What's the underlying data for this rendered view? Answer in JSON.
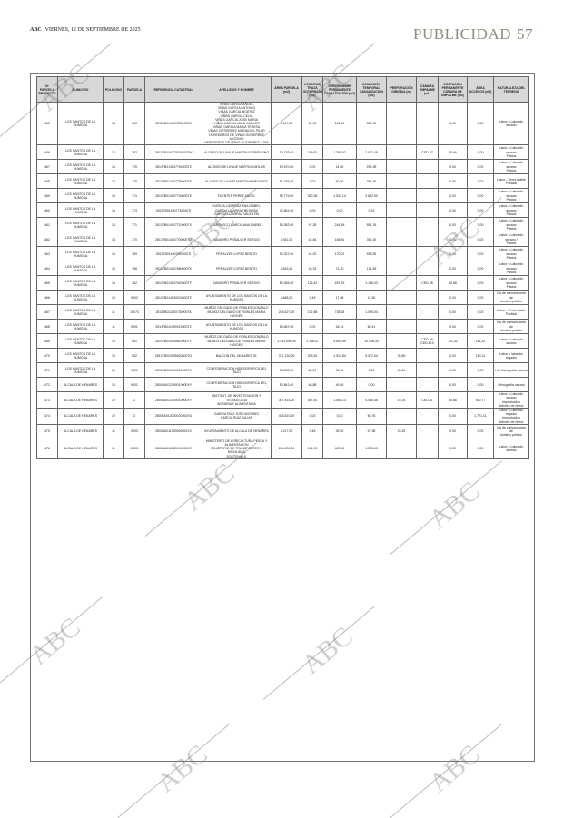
{
  "header": {
    "brand": "ABC",
    "date": "VIERNES, 12 DE SEPTIEMBRE DE 2025",
    "section": "PUBLICIDAD",
    "page_number": "57"
  },
  "watermark": "ABC",
  "table": {
    "columns": [
      "Nº PARCELA PROYECTO",
      "MUNICIPIO",
      "POLIGONO",
      "PARCELA",
      "REFERENCIA CATASTRAL",
      "APELLIDOS Y NOMBRE",
      "ÁREA PARCELA (m2)",
      "LONGITUD TRAZA SOTERRADA (m2)",
      "SERVIDUMBRE PERMANENTE CANALIZACIÓN (m2)",
      "OCUPACIÓN TEMPORAL CANALIZACIÓN (m2)",
      "PERFORACIÓN DIRIGIDA (m)",
      "CÁMARA EMPALME (ud.)",
      "OCUPACIÓN PERMANENTE CÁMARA DE EMPALME (m2)",
      "ÁREA ACCESOS (m2)",
      "NATURALEZA DEL TERRENO"
    ],
    "rows": [
      [
        "465",
        "LOS SANTOS DE LA HUMOSA",
        "14",
        "783",
        "28137B014007830000TA",
        "VIÑAS GARCIA ANGEL\nVIÑAS GARCIA ANTONIO\nVIÑAS GARCIA BEATRIZ\nVIÑAS GARCIA CELIA\nVIÑAS GARCIA JOSE MARIA\nVIÑAS GARCIA JUAN CARLOS\nVIÑAS GARCIA MARIA TERESA\nVIÑAS GUTIERREZ MARIACIEL PILAR\nHEREDEROS DE VIÑAS GUTIERREZ ANTONIO\nHEREDEROS DE VIÑAS GUTIERREZ JUAN",
        "4.117,00",
        "54,96",
        "164,49",
        "367,96",
        "",
        "",
        "0,00",
        "0,00",
        "Labor o Labradío secano"
      ],
      [
        "466",
        "LOS SANTOS DE LA HUMOSA",
        "14",
        "782",
        "28137B014007820000TW",
        "ALONSO DE LINAJE MARTIN FLORENTINO",
        "90.133,00",
        "249,81",
        "1.285,62",
        "2.027,45",
        "",
        "CED-07",
        "80,66",
        "0,00",
        "Labor o Labradío secano\nPastos"
      ],
      [
        "467",
        "LOS SANTOS DE LA HUMOSA",
        "14",
        "776",
        "28137B014007760000TZ",
        "ALONSO DE LINAJE MARTIN CARLOS",
        "50.570,00",
        "0,00",
        "14,00",
        "259,28",
        "",
        "",
        "0,00",
        "0,00",
        "Labor o Labradío secano\nPastos"
      ],
      [
        "468",
        "LOS SANTOS DE LA HUMOSA",
        "14",
        "775",
        "28137B014007750000TS",
        "ALONSO DE LINAJE MARTIN MARGARITA",
        "51.435,00",
        "0,00",
        "60,90",
        "364,35",
        "",
        "",
        "0,00",
        "0,00",
        "Labor - Tierra arable\nPastizal"
      ],
      [
        "469",
        "LOS SANTOS DE LA HUMOSA",
        "14",
        "774",
        "28137B014007740000TE",
        "FUENTES PEREZ ANGEL",
        "98.779,00",
        "380,38",
        "1.533,14",
        "2.642,50",
        "",
        "",
        "0,00",
        "0,00",
        "Labor o Labradío secano\nPastos"
      ],
      [
        "460",
        "LOS SANTOS DE LA HUMOSA",
        "14",
        "773",
        "28137B014007730000TI",
        "GARCIA LIZARRAZ ANA ISABEL\nGARCIA LIZARRAZ BEGOÑA\nGARCIA LIZARRAZ VALENTIN",
        "42.661,00",
        "0,00",
        "0,00",
        "0,92",
        "",
        "",
        "0,00",
        "0,00",
        "Labor o Labradío secano\nPastos"
      ],
      [
        "461",
        "LOS SANTOS DE LA HUMOSA",
        "14",
        "771",
        "28137B014007710000TX",
        "CARRASCO GARCIA ANA ISABEL",
        "15.362,00",
        "97,28",
        "244,99",
        "551,18",
        "",
        "",
        "0,00",
        "0,00",
        "Labor o Labradío secano\nPastos"
      ],
      [
        "462",
        "LOS SANTOS DE LA HUMOSA",
        "14",
        "770",
        "28137B014007700000TD",
        "NAVARRO PEÑALVER SERGIO",
        "8.921,00",
        "42,46",
        "169,81",
        "391,92",
        "",
        "",
        "0,00",
        "0,00",
        "Labor o Labradío secano /\nPastos"
      ],
      [
        "463",
        "LOS SANTOS DE LA HUMOSA",
        "14",
        "769",
        "28137B014007690000TI",
        "PEÑALVER LOPEZ BENITO",
        "10.327,00",
        "44,20",
        "170,21",
        "598,55",
        "",
        "",
        "0,00",
        "0,00",
        "Labor o Labradío secano\nPastos"
      ],
      [
        "464",
        "LOS SANTOS DE LA HUMOSA",
        "14",
        "768",
        "28137B014007680000TX",
        "PEÑALVER LOPEZ BENITO",
        "4.816,01",
        "18,33",
        "71,20",
        "174,59",
        "",
        "",
        "0,00",
        "0,00",
        "Labor o Labradío secano\nPastos"
      ],
      [
        "465",
        "LOS SANTOS DE LA HUMOSA",
        "14",
        "762",
        "28137B014007620000TF",
        "NAVARRO PEÑALVER SERGIO",
        "89.346,00",
        "123,42",
        "457,29",
        "1.136,43",
        "",
        "CED-08",
        "80,66",
        "0,00",
        "Labor o Labradío secano\nPastos"
      ],
      [
        "466",
        "LOS SANTOS DE LA HUMOSA",
        "14",
        "9002",
        "28137B014090020000TZ",
        "AYUNTAMIENTO DE LOS SANTOS DE LA HUMOSA",
        "8.668,00",
        "0,48",
        "17,98",
        "41,50",
        "",
        "",
        "0,00",
        "0,00",
        "Vía de comunicación de\ndominio público"
      ],
      [
        "467",
        "LOS SANTOS DE LA HUMOSA",
        "11",
        "10073",
        "28137B011100730000TA",
        "MUÑOZ DELGADO DE ROBLES GONZALO\nMUÑOZ DELGADO DE ROBLES MARIA HAYDEE",
        "254.627,00",
        "102,88",
        "735,18",
        "1.039,04",
        "",
        "",
        "0,00",
        "0,00",
        "Labor - Tierra arable\nPastizal"
      ],
      [
        "468",
        "LOS SANTOS DE LA HUMOSA",
        "11",
        "9001",
        "28137B011090010000TZ",
        "AYUNTAMIENTO DE LOS SANTOS DE LA HUMOSA",
        "15.667,00",
        "0,00",
        "26,43",
        "66,41",
        "",
        "",
        "0,00",
        "0,00",
        "Vía de comunicación de\ndominio público"
      ],
      [
        "469",
        "LOS SANTOS DE LA HUMOSA",
        "10",
        "561",
        "28137B010005610000TY",
        "MUÑOZ DELGADO DE ROBLES GONZALO\nMUÑOZ DELGADO DE ROBLES MARIA HAYDEE",
        "1.303.098,00",
        "1.198,47",
        "4.695,99",
        "10.938,30",
        "",
        "CED-09\nCED-010",
        "121,32",
        "113,22",
        "Labor o Labradío secano"
      ],
      [
        "470",
        "LOS SANTOS DE LA HUMOSA",
        "10",
        "562",
        "28137B010005620000TG",
        "BALCON DEL HENARES SL",
        "371.130,00",
        "303,52",
        "1.924,84",
        "5.072,64",
        "25,89",
        "",
        "0,00",
        "160,11",
        "Labor o labradío regadío"
      ],
      [
        "471",
        "LOS SANTOS DE LA HUMOSA",
        "10",
        "9001",
        "28137B010090010000TX",
        "CONFEDERACION HIDROGRAFICA DEL TAJO",
        "98.280,00",
        "80,21",
        "96,92",
        "0,00",
        "43,69",
        "",
        "0,00",
        "0,00",
        "HG Hidrografía natural"
      ],
      [
        "472",
        "ALCALA DE HENARES",
        "12",
        "9001",
        "28005A012090010000XY",
        "CONFEDERACION HIDROGRAFICA DEL TAJO",
        "80.841,00",
        "48,88",
        "49,89",
        "0,00",
        "",
        "",
        "0,00",
        "0,00",
        "Hidrografía natural"
      ],
      [
        "473",
        "ALCALA DE HENARES",
        "12",
        "1",
        "28005A012000010000XY",
        "INSTITUT. DE INVESTIGACION Y TECNOLOGIA\nAGRARIA Y ALIMENTARIA",
        "367.414,00",
        "547,81",
        "1.060,13",
        "4.468,45",
        "19,25",
        "CED-11",
        "80,66",
        "550,77",
        "Labor o Labradío secano\nImproductivo\nArboles de ribera"
      ],
      [
        "474",
        "ALCALA DE HENARES",
        "12",
        "2",
        "28005A012000020000XG",
        "GARCIA RUIZ JOSE ANTONIO\nGARCIA RUIZ JULIAN",
        "453.810,00",
        "0,00",
        "0,00",
        "56,75",
        "",
        "",
        "0,00",
        "1.771,11",
        "Labor o Labradío regadío\nImproductivo\nArboles de ribera"
      ],
      [
        "475",
        "ALCALA DE HENARES",
        "11",
        "9003",
        "28005A011090030000XX",
        "AYUNTAMIENTO DE ALCALA DE HENARES",
        "5.217,00",
        "0,46",
        "25,50",
        "57,98",
        "23,93",
        "",
        "0,00",
        "0,00",
        "Vía de comunicación de\ndominio público"
      ],
      [
        "476",
        "ALCALA DE HENARES",
        "11",
        "15001",
        "28005A011150010000XE",
        "MINISTERIO DE AGRICULTURA PESCA Y\nALIMENTACION\nMINISTERIO DE TRANSPORTES Y MOVILIDAD\nSOSTENIBLE",
        "284.431,00",
        "141,99",
        "425,51",
        "1.235,63",
        "",
        "",
        "0,00",
        "0,00",
        "Labor o Labradío secano"
      ]
    ]
  }
}
